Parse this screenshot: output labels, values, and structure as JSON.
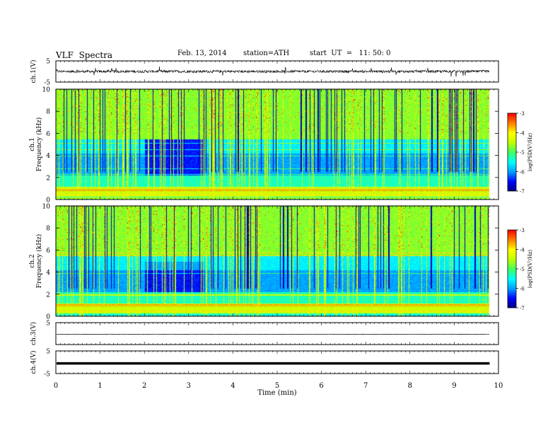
{
  "header": {
    "title": "VLF  Spectra",
    "date": "Feb. 13, 2014",
    "station": "station=ATH",
    "start": "start  UT  =   11: 50: 0"
  },
  "chart_data": [
    {
      "type": "line",
      "ylabel": "ch.1(V)",
      "ylim": [
        -5,
        5
      ],
      "yticks": [
        5,
        -5
      ],
      "xlim": [
        0,
        10
      ],
      "description_values": {
        "baseline": 0,
        "noise": 0.6
      }
    },
    {
      "type": "heatmap",
      "ylabel": "ch.1\nFrequency  (kHz)",
      "ylim": [
        0,
        10
      ],
      "yticks": [
        0,
        2,
        4,
        6,
        8,
        10
      ],
      "xlim": [
        0,
        10
      ],
      "colorbar": {
        "label": "log(PSD(V²/Hz)",
        "ticks": [
          -3,
          -4,
          -5,
          -6,
          -7
        ]
      }
    },
    {
      "type": "heatmap",
      "ylabel": "ch.2\nFrequency  (kHz)",
      "ylim": [
        0,
        10
      ],
      "yticks": [
        0,
        2,
        4,
        6,
        8,
        10
      ],
      "xlim": [
        0,
        10
      ],
      "colorbar": {
        "label": "log(PSD(V²/Hz)",
        "ticks": [
          -3,
          -4,
          -5,
          -6,
          -7
        ]
      }
    },
    {
      "type": "line",
      "ylabel": "ch.3(V)",
      "ylim": [
        -5,
        5
      ],
      "yticks": [
        5
      ],
      "xlim": [
        0,
        10
      ]
    },
    {
      "type": "line",
      "ylabel": "ch.4(V)",
      "ylim": [
        -5,
        5
      ],
      "yticks": [
        5,
        -5
      ],
      "xlim": [
        0,
        10
      ],
      "xlabel": "Time  (min)",
      "xticks": [
        0,
        1,
        2,
        3,
        4,
        5,
        6,
        7,
        8,
        9,
        10
      ]
    }
  ],
  "colors": {
    "colormap": [
      "#000080",
      "#0000ff",
      "#00a0ff",
      "#00ffff",
      "#40ff60",
      "#c0ff00",
      "#ffff00",
      "#ff8000",
      "#ff0000",
      "#ffffff"
    ]
  }
}
